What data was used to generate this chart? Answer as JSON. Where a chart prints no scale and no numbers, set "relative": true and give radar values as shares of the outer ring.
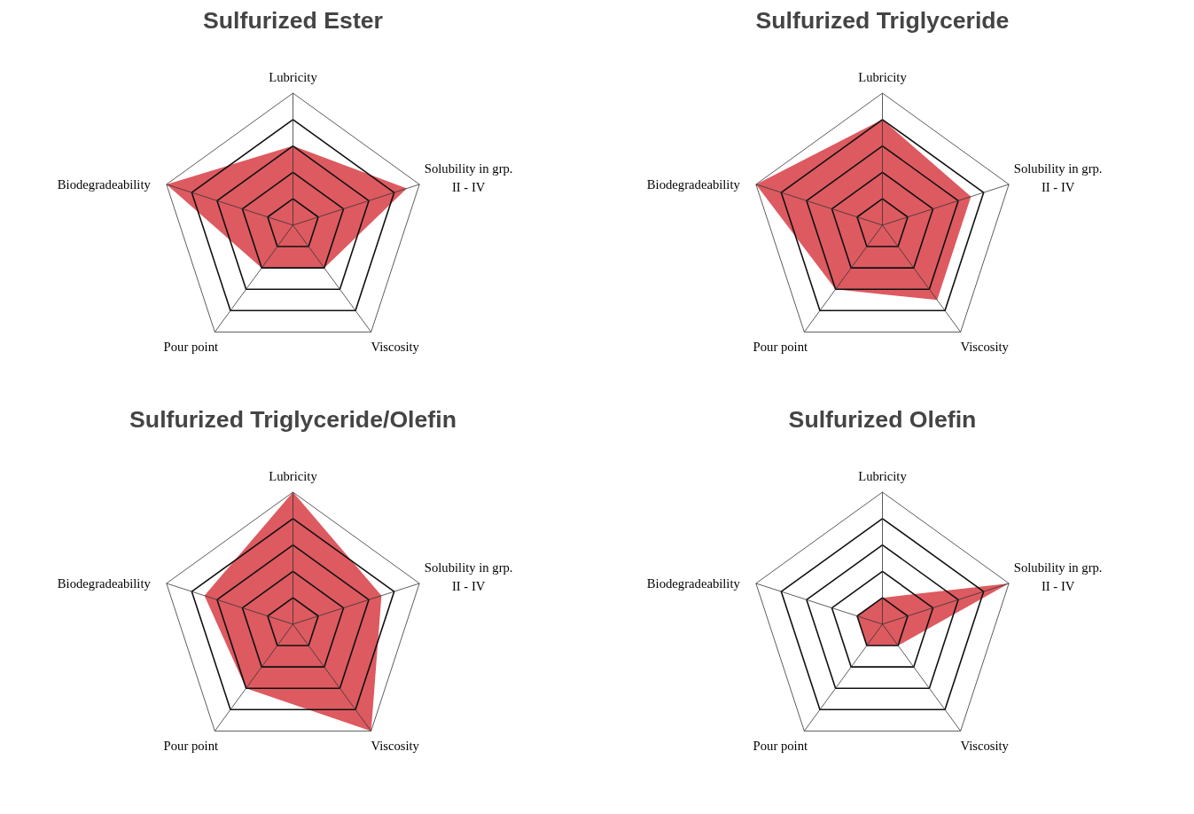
{
  "chart_data": [
    {
      "type": "radar",
      "title": "Sulfurized Ester",
      "categories": [
        "Lubricity",
        "Solubility in grp.\nII - IV",
        "Viscosity",
        "Pour point",
        "Biodegradeability"
      ],
      "relative": true,
      "grid": true,
      "series": [
        {
          "color": "#dd5a60",
          "values": [
            0.6,
            0.9,
            0.4,
            0.4,
            1.0
          ]
        }
      ]
    },
    {
      "type": "radar",
      "title": "Sulfurized Triglyceride",
      "categories": [
        "Lubricity",
        "Solubility in grp.\nII - IV",
        "Viscosity",
        "Pour point",
        "Biodegradeability"
      ],
      "relative": true,
      "grid": true,
      "series": [
        {
          "color": "#dd5a60",
          "values": [
            0.8,
            0.7,
            0.7,
            0.6,
            1.0
          ]
        }
      ]
    },
    {
      "type": "radar",
      "title": "Sulfurized Triglyceride/Olefin",
      "categories": [
        "Lubricity",
        "Solubility in grp.\nII - IV",
        "Viscosity",
        "Pour point",
        "Biodegradeability"
      ],
      "relative": true,
      "grid": true,
      "series": [
        {
          "color": "#dd5a60",
          "values": [
            1.0,
            0.7,
            1.0,
            0.6,
            0.7
          ]
        }
      ]
    },
    {
      "type": "radar",
      "title": "Sulfurized Olefin",
      "categories": [
        "Lubricity",
        "Solubility in grp.\nII - IV",
        "Viscosity",
        "Pour point",
        "Biodegradeability"
      ],
      "relative": true,
      "grid": true,
      "series": [
        {
          "color": "#dd5a60",
          "values": [
            0.2,
            1.0,
            0.2,
            0.2,
            0.2
          ]
        }
      ]
    }
  ]
}
